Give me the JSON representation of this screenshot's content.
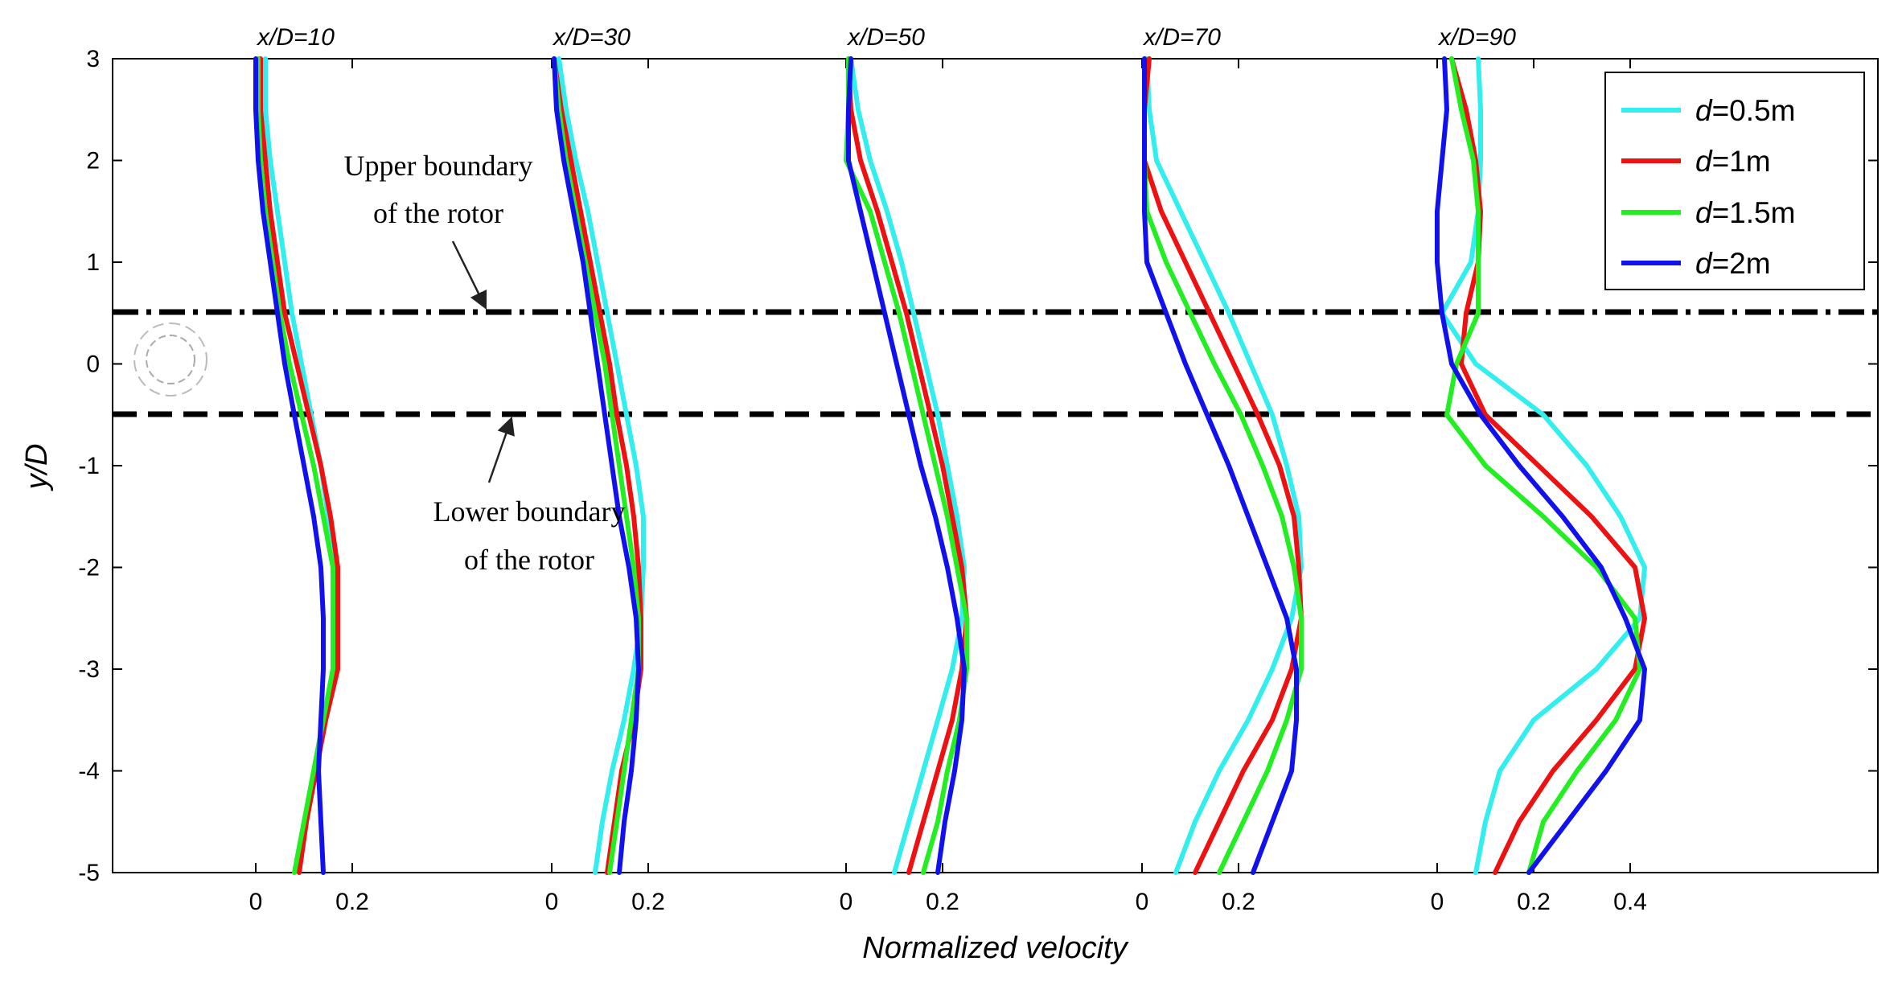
{
  "chart_data": {
    "type": "line",
    "title": "",
    "xlabel": "Normalized velocity",
    "ylabel": "y/D",
    "ylim": [
      -5,
      3
    ],
    "yticks": [
      3,
      2,
      1,
      0,
      -1,
      -2,
      -3,
      -4,
      -5
    ],
    "ytick_labels": [
      "3",
      "2",
      "1",
      "0",
      "-1",
      "-2",
      "-3",
      "-4",
      "-5"
    ],
    "rotor_upper_y": 0.5,
    "rotor_lower_y": -0.5,
    "stations": [
      {
        "label": "x/D=10",
        "ticks": [
          0,
          0.2
        ],
        "tick_labels": [
          "0",
          "0.2"
        ]
      },
      {
        "label": "x/D=30",
        "ticks": [
          0,
          0.2
        ],
        "tick_labels": [
          "0",
          "0.2"
        ]
      },
      {
        "label": "x/D=50",
        "ticks": [
          0,
          0.2
        ],
        "tick_labels": [
          "0",
          "0.2"
        ]
      },
      {
        "label": "x/D=70",
        "ticks": [
          0,
          0.2
        ],
        "tick_labels": [
          "0",
          "0.2"
        ]
      },
      {
        "label": "x/D=90",
        "ticks": [
          0,
          0.2,
          0.4
        ],
        "tick_labels": [
          "0",
          "0.2",
          "0.4"
        ]
      }
    ],
    "y": [
      3,
      2.5,
      2,
      1.5,
      1,
      0.5,
      0,
      -0.5,
      -1,
      -1.5,
      -2,
      -2.5,
      -3,
      -3.5,
      -4,
      -4.5,
      -5
    ],
    "series": [
      {
        "name": "d=0.5m",
        "label_italic": "d",
        "label_rest": "=0.5m",
        "color": "#33eeee",
        "profiles": [
          [
            0.02,
            0.02,
            0.03,
            0.045,
            0.06,
            0.075,
            0.095,
            0.115,
            0.135,
            0.15,
            0.165,
            0.17,
            0.16,
            0.14,
            0.125,
            0.105,
            0.09
          ],
          [
            0.015,
            0.03,
            0.05,
            0.075,
            0.095,
            0.115,
            0.135,
            0.155,
            0.175,
            0.19,
            0.19,
            0.185,
            0.17,
            0.15,
            0.125,
            0.105,
            0.09
          ],
          [
            0.01,
            0.025,
            0.05,
            0.085,
            0.115,
            0.14,
            0.165,
            0.19,
            0.21,
            0.23,
            0.245,
            0.24,
            0.22,
            0.19,
            0.16,
            0.13,
            0.1
          ],
          [
            0.01,
            0.015,
            0.03,
            0.08,
            0.13,
            0.18,
            0.225,
            0.27,
            0.3,
            0.325,
            0.33,
            0.31,
            0.27,
            0.22,
            0.16,
            0.11,
            0.07
          ],
          [
            0.085,
            0.09,
            0.09,
            0.085,
            0.07,
            0.01,
            0.08,
            0.22,
            0.31,
            0.38,
            0.43,
            0.42,
            0.33,
            0.2,
            0.13,
            0.1,
            0.08
          ]
        ]
      },
      {
        "name": "d=1m",
        "label_italic": "d",
        "label_rest": "=1m",
        "color": "#ee1111",
        "profiles": [
          [
            0.01,
            0.01,
            0.02,
            0.03,
            0.045,
            0.06,
            0.085,
            0.11,
            0.135,
            0.155,
            0.17,
            0.17,
            0.17,
            0.145,
            0.125,
            0.105,
            0.09
          ],
          [
            0.005,
            0.02,
            0.04,
            0.06,
            0.08,
            0.1,
            0.12,
            0.135,
            0.155,
            0.17,
            0.18,
            0.185,
            0.185,
            0.17,
            0.145,
            0.13,
            0.115
          ],
          [
            0.005,
            0.01,
            0.03,
            0.065,
            0.095,
            0.125,
            0.15,
            0.175,
            0.2,
            0.22,
            0.24,
            0.25,
            0.24,
            0.22,
            0.19,
            0.16,
            0.13
          ],
          [
            0.015,
            0.005,
            0.005,
            0.04,
            0.09,
            0.14,
            0.19,
            0.24,
            0.285,
            0.315,
            0.325,
            0.33,
            0.31,
            0.27,
            0.21,
            0.16,
            0.11
          ],
          [
            0.03,
            0.06,
            0.08,
            0.09,
            0.085,
            0.06,
            0.05,
            0.1,
            0.21,
            0.32,
            0.41,
            0.43,
            0.41,
            0.33,
            0.24,
            0.17,
            0.12
          ]
        ]
      },
      {
        "name": "d=1.5m",
        "label_italic": "d",
        "label_rest": "=1.5m",
        "color": "#22ee22",
        "profiles": [
          [
            0.005,
            0.005,
            0.01,
            0.02,
            0.035,
            0.05,
            0.07,
            0.095,
            0.12,
            0.14,
            0.16,
            0.16,
            0.16,
            0.14,
            0.12,
            0.1,
            0.08
          ],
          [
            0.005,
            0.015,
            0.03,
            0.05,
            0.07,
            0.09,
            0.11,
            0.125,
            0.14,
            0.155,
            0.17,
            0.18,
            0.18,
            0.165,
            0.15,
            0.135,
            0.12
          ],
          [
            0.005,
            0.005,
            0.0,
            0.05,
            0.08,
            0.11,
            0.135,
            0.16,
            0.185,
            0.21,
            0.23,
            0.25,
            0.25,
            0.235,
            0.21,
            0.19,
            0.16
          ],
          [
            0.005,
            0.005,
            0.005,
            0.01,
            0.05,
            0.1,
            0.15,
            0.205,
            0.25,
            0.29,
            0.315,
            0.33,
            0.33,
            0.3,
            0.26,
            0.21,
            0.16
          ],
          [
            0.03,
            0.05,
            0.075,
            0.085,
            0.085,
            0.085,
            0.04,
            0.02,
            0.1,
            0.22,
            0.33,
            0.41,
            0.42,
            0.37,
            0.29,
            0.22,
            0.19
          ]
        ]
      },
      {
        "name": "d=2m",
        "label_italic": "d",
        "label_rest": "=2m",
        "color": "#1111ee",
        "profiles": [
          [
            0.0,
            0.0,
            0.005,
            0.015,
            0.03,
            0.045,
            0.06,
            0.08,
            0.1,
            0.12,
            0.135,
            0.14,
            0.14,
            0.135,
            0.13,
            0.135,
            0.14
          ],
          [
            0.005,
            0.01,
            0.025,
            0.045,
            0.065,
            0.08,
            0.095,
            0.11,
            0.125,
            0.14,
            0.16,
            0.175,
            0.18,
            0.175,
            0.165,
            0.15,
            0.14
          ],
          [
            0.01,
            0.005,
            0.005,
            0.03,
            0.055,
            0.08,
            0.105,
            0.13,
            0.155,
            0.185,
            0.21,
            0.23,
            0.245,
            0.24,
            0.225,
            0.205,
            0.19
          ],
          [
            0.005,
            0.005,
            0.005,
            0.005,
            0.01,
            0.05,
            0.09,
            0.135,
            0.18,
            0.22,
            0.26,
            0.3,
            0.32,
            0.32,
            0.31,
            0.27,
            0.23
          ],
          [
            0.015,
            0.02,
            0.01,
            0.0,
            0.0,
            0.01,
            0.03,
            0.09,
            0.17,
            0.26,
            0.34,
            0.39,
            0.43,
            0.42,
            0.35,
            0.27,
            0.19
          ]
        ]
      }
    ],
    "annotations": [
      {
        "lines": [
          "Upper boundary",
          "of the rotor"
        ]
      },
      {
        "lines": [
          "Lower boundary",
          "of the rotor"
        ]
      }
    ]
  }
}
